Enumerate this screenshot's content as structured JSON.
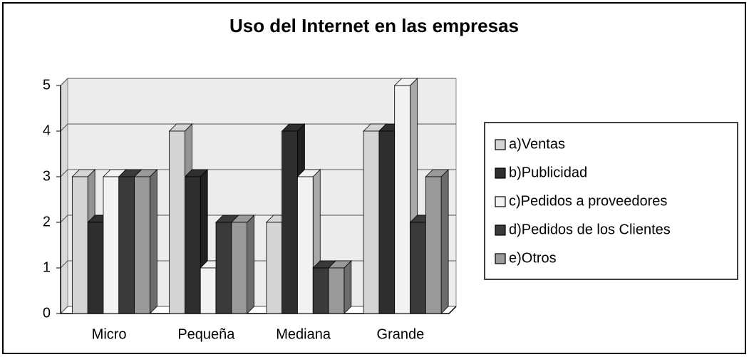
{
  "chart_data": {
    "type": "bar",
    "title": "Uso del Internet en las empresas",
    "categories": [
      "Micro",
      "Pequeña",
      "Mediana",
      "Grande"
    ],
    "series": [
      {
        "name": "a)Ventas",
        "color": "#d4d4d4",
        "values": [
          3,
          4,
          2,
          4
        ]
      },
      {
        "name": "b)Publicidad",
        "color": "#2e2e2e",
        "values": [
          2,
          3,
          4,
          4
        ]
      },
      {
        "name": "c)Pedidos a proveedores",
        "color": "#f2f2f2",
        "values": [
          3,
          1,
          3,
          5
        ]
      },
      {
        "name": "d)Pedidos de los Clientes",
        "color": "#3a3a3a",
        "values": [
          3,
          2,
          1,
          2
        ]
      },
      {
        "name": "e)Otros",
        "color": "#9a9a9a",
        "values": [
          3,
          2,
          1,
          3
        ]
      }
    ],
    "ylim": [
      0,
      5
    ],
    "yticks": [
      0,
      1,
      2,
      3,
      4,
      5
    ],
    "grid": true,
    "legend": "right"
  }
}
